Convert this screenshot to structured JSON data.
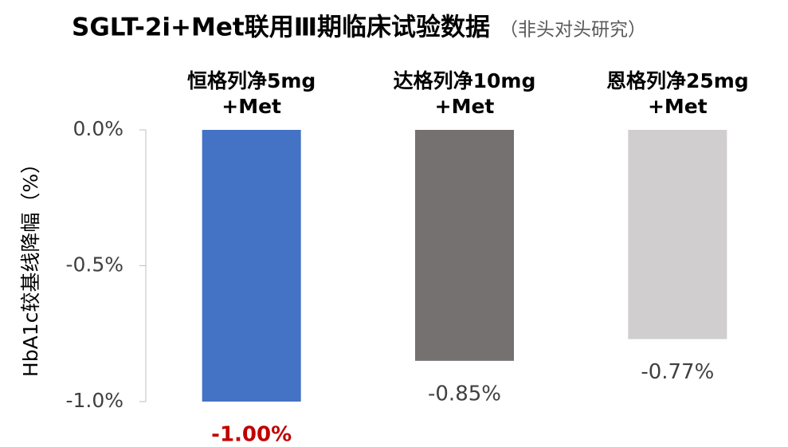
{
  "chart_data": {
    "type": "bar",
    "title": "SGLT-2i+Met联用Ⅲ期临床试验数据",
    "subtitle": "（非头对头研究）",
    "y_label": "HbA1c较基线降幅（%）",
    "categories": [
      "恒格列净5mg\n+Met",
      "达格列净10mg\n+Met",
      "恩格列净25mg\n+Met"
    ],
    "values": [
      -1.0,
      -0.85,
      -0.77
    ],
    "value_labels": [
      "-1.00%",
      "-0.85%",
      "-0.77%"
    ],
    "colors": [
      "#4472c4",
      "#767171",
      "#d0cece"
    ],
    "value_label_colors": [
      "#c00000",
      "#404040",
      "#404040"
    ],
    "ylim": [
      -1,
      0
    ],
    "yticks": [
      {
        "value": 0,
        "label": "0.0%"
      },
      {
        "value": -0.5,
        "label": "-0.5%"
      },
      {
        "value": -1,
        "label": "-1.0%"
      }
    ]
  }
}
